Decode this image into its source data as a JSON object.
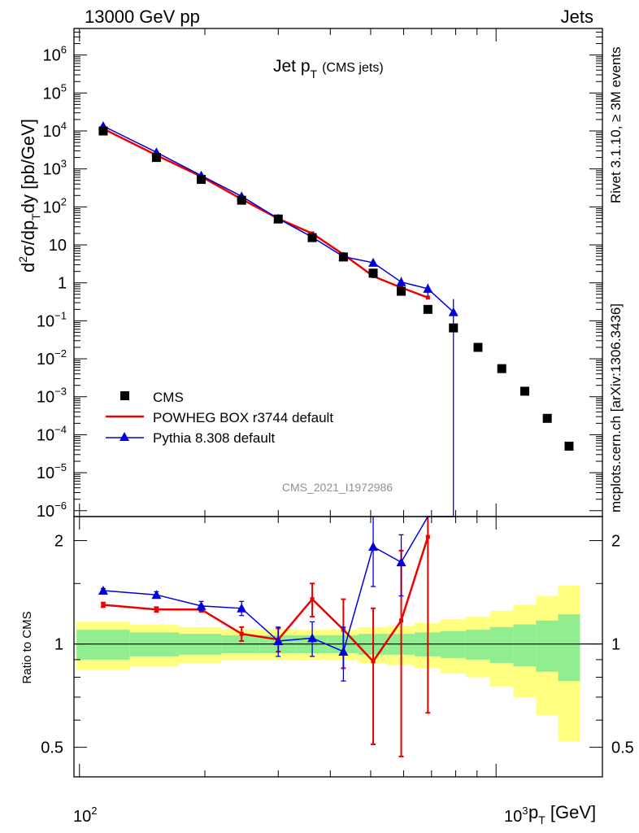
{
  "header": {
    "left": "13000 GeV pp",
    "right": "Jets"
  },
  "title": {
    "main": "Jet p",
    "sub": "T",
    "note": "(CMS jets)"
  },
  "side_labels": {
    "rivet": "Rivet 3.1.10, ≥ 3M events",
    "mcplots": "mcplots.cern.ch [arXiv:1306.3436]"
  },
  "analysis_id": "CMS_2021_I1972986",
  "main_ylabel": {
    "a": "d",
    "b": "2",
    "c": "σ/dp",
    "d": "T",
    "e": "dy [pb/GeV]"
  },
  "ratio_ylabel": "Ratio to CMS",
  "xlabel": {
    "a": "p",
    "b": "T",
    "c": " [GeV]"
  },
  "legend": [
    "CMS",
    "POWHEG BOX r3744 default",
    "Pythia 8.308 default"
  ],
  "main_yticks": [
    "10",
    "10",
    "10",
    "10",
    "10",
    "10",
    "1",
    "10",
    "10",
    "10",
    "10",
    "10",
    "10",
    "10"
  ],
  "main_ytick_exps": [
    "6",
    "5",
    "4",
    "3",
    "2",
    "",
    "",
    "−1",
    "−2",
    "−3",
    "−4",
    "−5",
    "−6"
  ],
  "ratio_yticks": [
    "2",
    "1",
    "0.5"
  ],
  "xticks": {
    "base": "10",
    "exp2": "2",
    "exp3": "3"
  },
  "colors": {
    "cms": "#000000",
    "powheg": "#ee0000",
    "pythia": "#0000dd",
    "band_inner": "#90ee90",
    "band_outer": "#ffff80"
  },
  "chart_data": {
    "type": "scatter",
    "x_scale": "log",
    "y_scale": "log",
    "xlim": [
      97,
      1800
    ],
    "ylim": [
      7e-07,
      5000000.0
    ],
    "ratio_ylim": [
      0.41,
      2.35
    ],
    "title": "Jet pT (CMS jets)",
    "xlabel": "pT [GeV]",
    "ylabel": "d2σ/dpTdy [pb/GeV]",
    "series": [
      {
        "name": "CMS",
        "x": [
          114,
          153,
          196,
          245,
          300,
          362,
          430,
          507,
          592,
          686,
          790,
          905,
          1032,
          1172,
          1327,
          1497
        ],
        "y": [
          10000,
          2000,
          530,
          150,
          48,
          15.5,
          4.8,
          1.8,
          0.6,
          0.2,
          0.065,
          0.02,
          0.0055,
          0.0014,
          0.00027,
          5e-05
        ],
        "ratio_band_inner": [
          0.1,
          0.08,
          0.07,
          0.06,
          0.06,
          0.06,
          0.06,
          0.07,
          0.07,
          0.08,
          0.09,
          0.1,
          0.12,
          0.14,
          0.17,
          0.22
        ],
        "ratio_band_outer": [
          0.16,
          0.14,
          0.12,
          0.1,
          0.1,
          0.1,
          0.1,
          0.12,
          0.13,
          0.15,
          0.18,
          0.2,
          0.25,
          0.3,
          0.38,
          0.48
        ]
      },
      {
        "name": "POWHEG BOX r3744 default",
        "x": [
          114,
          153,
          196,
          245,
          300,
          362,
          430,
          507,
          592,
          686
        ],
        "y": [
          11500,
          2300,
          630,
          160,
          49,
          20,
          5.6,
          1.5,
          0.75,
          0.41
        ],
        "ratio": [
          1.3,
          1.26,
          1.26,
          1.07,
          1.03,
          1.35,
          1.1,
          0.89,
          1.17,
          2.05
        ],
        "ratio_err": [
          0.02,
          0.02,
          0.02,
          0.05,
          0.08,
          0.15,
          0.25,
          0.38,
          0.7,
          1.42
        ]
      },
      {
        "name": "Pythia 8.308 default",
        "x": [
          114,
          153,
          196,
          245,
          300,
          362,
          430,
          507,
          592,
          686,
          790
        ],
        "y": [
          13500,
          2750,
          670,
          190,
          49,
          16,
          4.9,
          3.4,
          1.05,
          0.7,
          0.17
        ],
        "ratio": [
          1.43,
          1.39,
          1.29,
          1.27,
          1.02,
          1.04,
          0.95,
          1.92,
          1.73,
          3.8,
          5.0
        ],
        "ratio_err": [
          0.02,
          0.03,
          0.04,
          0.06,
          0.1,
          0.12,
          0.17,
          0.45,
          0.35,
          1.2,
          1.5
        ]
      }
    ]
  }
}
